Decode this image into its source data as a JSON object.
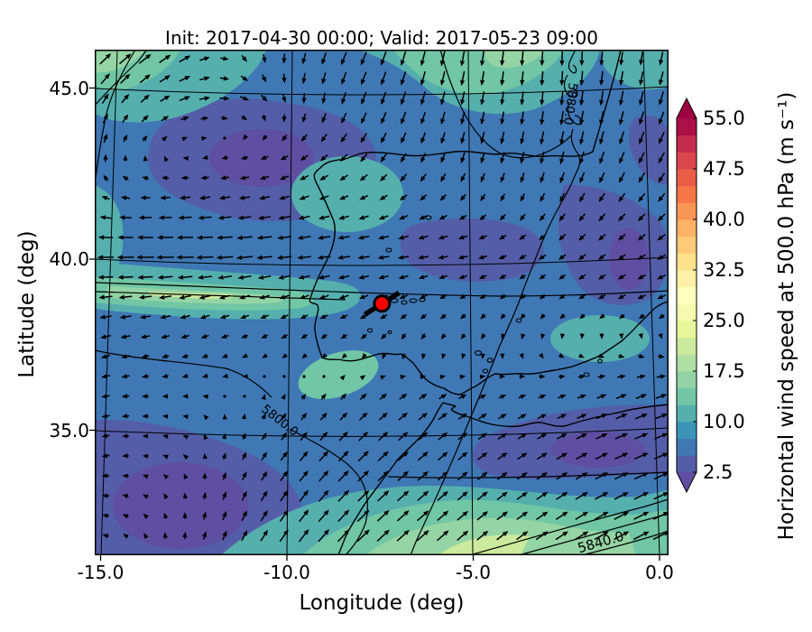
{
  "figure": {
    "title": "Init: 2017-04-30 00:00; Valid: 2017-05-23 09:00"
  },
  "axes": {
    "xlabel": "Longitude (deg)",
    "ylabel": "Latitude (deg)",
    "xticks": [
      {
        "label": "-15.0",
        "lon": -15
      },
      {
        "label": "-10.0",
        "lon": -10
      },
      {
        "label": "-5.0",
        "lon": -5
      },
      {
        "label": "0.0",
        "lon": 0
      }
    ],
    "yticks": [
      {
        "label": "45.0",
        "lat": 45
      },
      {
        "label": "40.0",
        "lat": 40
      },
      {
        "label": "35.0",
        "lat": 35
      }
    ]
  },
  "colorbar": {
    "label": "Horizontal wind speed at 500.0 hPa (m s⁻¹)",
    "ticks": [
      {
        "label": "55.0",
        "v": 55
      },
      {
        "label": "47.5",
        "v": 47.5
      },
      {
        "label": "40.0",
        "v": 40
      },
      {
        "label": "32.5",
        "v": 32.5
      },
      {
        "label": "25.0",
        "v": 25
      },
      {
        "label": "17.5",
        "v": 17.5
      },
      {
        "label": "10.0",
        "v": 10
      },
      {
        "label": "2.5",
        "v": 2.5
      }
    ],
    "level_min": 2.5,
    "level_max": 55.0,
    "level_step": 2.5,
    "under_color": "#5e4fa2",
    "over_color": "#9e0142",
    "segment_colors": [
      "#545da8",
      "#3f78b5",
      "#3c93b8",
      "#55afad",
      "#70c6a5",
      "#91d3a5",
      "#b0dfa3",
      "#ccea9d",
      "#e7f69a",
      "#f3faac",
      "#ffffbf",
      "#fff0a6",
      "#fee18d",
      "#feca79",
      "#feb265",
      "#f99555",
      "#f57647",
      "#e95d47",
      "#da464c",
      "#c52c4b",
      "#ab0f45"
    ]
  },
  "chart_data": {
    "type": "heatmap",
    "subtype": "map-filled-contour-with-quiver",
    "title": "Init: 2017-04-30 00:00; Valid: 2017-05-23 09:00",
    "xlabel": "Longitude (deg)",
    "ylabel": "Latitude (deg)",
    "xlim": [
      -15.4,
      0.4
    ],
    "ylim": [
      31.4,
      46.1
    ],
    "field": "Horizontal wind speed at 500.0 hPa (m s⁻¹)",
    "fill_levels": [
      2.5,
      5,
      7.5,
      10,
      12.5,
      15,
      17.5,
      20,
      22.5,
      25,
      27.5,
      30,
      32.5,
      35,
      37.5,
      40,
      42.5,
      45,
      47.5,
      50,
      52.5,
      55
    ],
    "geopotential_contour_labels": [
      {
        "text": "5800.0",
        "lon": -10.2,
        "lat": 35.9
      },
      {
        "text": "5840.0",
        "lon": -1.6,
        "lat": 32.4
      },
      {
        "text": "5880.0",
        "lon": -2.4,
        "lat": 45.0
      }
    ],
    "marker": {
      "lon": -7.45,
      "lat": 38.7,
      "color": "#ff0000",
      "edge": "#000000"
    },
    "wind_grid": {
      "comment": "estimated 500 hPa wind vectors (u eastward, v northward, m/s) on coarse grid",
      "lons": [
        -15.4,
        -13.96,
        -12.53,
        -11.09,
        -9.65,
        -8.22,
        -6.78,
        -5.35,
        -3.91,
        -2.47,
        -1.04,
        0.4
      ],
      "lats": [
        46.1,
        44.63,
        43.16,
        41.69,
        40.22,
        38.75,
        37.28,
        35.81,
        34.34,
        32.87,
        31.4
      ],
      "u": [
        [
          8,
          9,
          7,
          2,
          -2,
          -4,
          -3,
          -2,
          -1,
          0,
          -1,
          -2
        ],
        [
          3,
          5,
          7,
          5,
          0,
          -3,
          -3,
          -2,
          -1,
          -1,
          -2,
          -3
        ],
        [
          1,
          1,
          0,
          -3,
          -4,
          -4,
          -3,
          -2,
          -2,
          -2,
          -3,
          -4
        ],
        [
          -4,
          -6,
          -7,
          -7,
          -6,
          -5,
          -4,
          -3,
          -2,
          -3,
          -4,
          -4
        ],
        [
          -11,
          -13,
          -13,
          -12,
          -10,
          -8,
          -7,
          -6,
          -4,
          -4,
          -4,
          -5
        ],
        [
          -9,
          -8,
          -7,
          -6,
          -5,
          -5,
          -4,
          -3,
          -2,
          -3,
          -4,
          -5
        ],
        [
          -6,
          -4,
          -3,
          -2,
          -2,
          -2,
          -1,
          -1,
          0,
          1,
          2,
          3
        ],
        [
          -5,
          -3,
          -1,
          0,
          2,
          4,
          5,
          5,
          4,
          5,
          7,
          8
        ],
        [
          -5,
          -2,
          -1,
          2,
          5,
          7,
          7,
          6,
          6,
          7,
          9,
          10
        ],
        [
          -4,
          -2,
          0,
          3,
          6,
          8,
          8,
          7,
          7,
          8,
          10,
          11
        ],
        [
          -3,
          -1,
          1,
          4,
          7,
          9,
          9,
          8,
          8,
          9,
          11,
          12
        ]
      ],
      "v": [
        [
          8,
          7,
          4,
          -4,
          -7,
          -9,
          -10,
          -11,
          -10,
          -10,
          -9,
          -9
        ],
        [
          7,
          5,
          2,
          -2,
          -6,
          -8,
          -9,
          -9,
          -9,
          -10,
          -10,
          -9
        ],
        [
          6,
          2,
          0,
          -1,
          -3,
          -5,
          -6,
          -7,
          -8,
          -9,
          -8,
          -7
        ],
        [
          2,
          0,
          -1,
          -1,
          -2,
          -2,
          -3,
          -3,
          -4,
          -5,
          -5,
          -5
        ],
        [
          0,
          0,
          0,
          -1,
          -1,
          -1,
          -1,
          -1,
          -2,
          -3,
          -3,
          -3
        ],
        [
          -1,
          -1,
          -2,
          -2,
          -2,
          -2,
          -2,
          -2,
          -2,
          -2,
          -2,
          -2
        ],
        [
          -2,
          -1,
          -1,
          -1,
          -2,
          -2,
          -3,
          -2,
          -2,
          -1,
          -1,
          -1
        ],
        [
          -1,
          0,
          0,
          1,
          3,
          4,
          4,
          3,
          2,
          2,
          3,
          3
        ],
        [
          -1,
          0,
          1,
          4,
          6,
          7,
          6,
          5,
          4,
          4,
          4,
          4
        ],
        [
          0,
          1,
          3,
          6,
          8,
          8,
          7,
          6,
          5,
          5,
          5,
          5
        ],
        [
          0,
          2,
          4,
          7,
          9,
          9,
          8,
          7,
          6,
          6,
          6,
          6
        ]
      ]
    }
  }
}
